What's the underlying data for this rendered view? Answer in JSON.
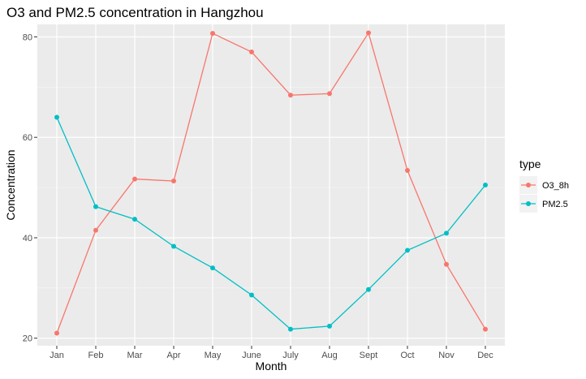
{
  "chart_data": {
    "type": "line",
    "title": "O3 and PM2.5 concentration in Hangzhou",
    "xlabel": "Month",
    "ylabel": "Concentration",
    "categories": [
      "Jan",
      "Feb",
      "Mar",
      "Apr",
      "May",
      "June",
      "July",
      "Aug",
      "Sept",
      "Oct",
      "Nov",
      "Dec"
    ],
    "ylim": [
      18.5,
      82.5
    ],
    "yticks": [
      20,
      40,
      60,
      80
    ],
    "grid": true,
    "legend_title": "type",
    "legend_position": "right",
    "series": [
      {
        "name": "O3_8h",
        "color": "#F8766D",
        "values": [
          21.0,
          41.5,
          51.7,
          51.3,
          80.7,
          77.0,
          68.4,
          68.7,
          80.8,
          53.4,
          34.7,
          21.8
        ]
      },
      {
        "name": "PM2.5",
        "color": "#00BFC4",
        "values": [
          64.0,
          46.2,
          43.7,
          38.3,
          34.0,
          28.6,
          21.8,
          22.4,
          29.7,
          37.5,
          40.9,
          50.5
        ]
      }
    ]
  }
}
